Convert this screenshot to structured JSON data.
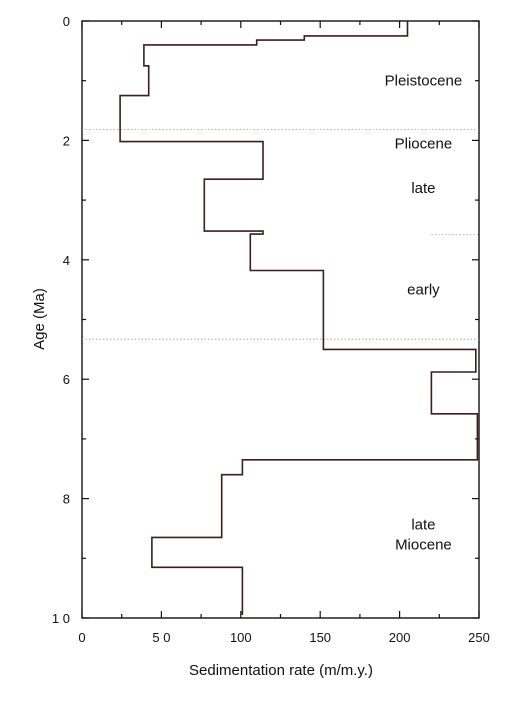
{
  "chart_data": {
    "type": "line",
    "xlabel": "Sedimentation rate (m/m.y.)",
    "ylabel": "Age (Ma)",
    "xlim": [
      0,
      250
    ],
    "ylim": [
      0,
      10
    ],
    "y_inverted": true,
    "x_ticks": [
      "0",
      "5 0",
      "100",
      "150",
      "200",
      "250"
    ],
    "y_ticks": [
      "0",
      "2",
      "4",
      "6",
      "8",
      "1 0"
    ],
    "grid": false,
    "series": [
      {
        "style": "step",
        "color": "#3a1f1f",
        "points": [
          [
            205,
            0
          ],
          [
            205,
            0.25
          ],
          [
            140,
            0.25
          ],
          [
            140,
            0.32
          ],
          [
            110,
            0.32
          ],
          [
            110,
            0.4
          ],
          [
            39,
            0.4
          ],
          [
            39,
            0.75
          ],
          [
            42,
            0.75
          ],
          [
            42,
            1.25
          ],
          [
            24,
            1.25
          ],
          [
            24,
            2.02
          ],
          [
            114,
            2.02
          ],
          [
            114,
            2.65
          ],
          [
            77,
            2.65
          ],
          [
            77,
            3.52
          ],
          [
            114,
            3.52
          ],
          [
            114,
            3.57
          ],
          [
            106,
            3.57
          ],
          [
            106,
            4.18
          ],
          [
            152,
            4.18
          ],
          [
            152,
            5.5
          ],
          [
            248,
            5.5
          ],
          [
            248,
            5.88
          ],
          [
            220,
            5.88
          ],
          [
            220,
            6.58
          ],
          [
            249,
            6.58
          ],
          [
            249,
            7.35
          ],
          [
            101,
            7.35
          ],
          [
            101,
            7.6
          ],
          [
            88,
            7.6
          ],
          [
            88,
            8.65
          ],
          [
            44,
            8.65
          ],
          [
            44,
            9.15
          ],
          [
            101,
            9.15
          ],
          [
            101,
            9.95
          ]
        ]
      }
    ],
    "boundaries": [
      {
        "age": 1.82,
        "x_range": [
          0,
          250
        ]
      },
      {
        "age": 3.58,
        "x_range": [
          220,
          250
        ]
      },
      {
        "age": 5.33,
        "x_range": [
          0,
          250
        ]
      }
    ],
    "annotations": [
      {
        "lines": [
          "Pleistocene"
        ],
        "x": 215,
        "y": 1.0
      },
      {
        "lines": [
          "Pliocene"
        ],
        "x": 215,
        "y": 2.05
      },
      {
        "lines": [
          "late"
        ],
        "x": 215,
        "y": 2.8
      },
      {
        "lines": [
          "early"
        ],
        "x": 215,
        "y": 4.5
      },
      {
        "lines": [
          "late",
          "Miocene"
        ],
        "x": 215,
        "y": 8.6
      }
    ]
  }
}
